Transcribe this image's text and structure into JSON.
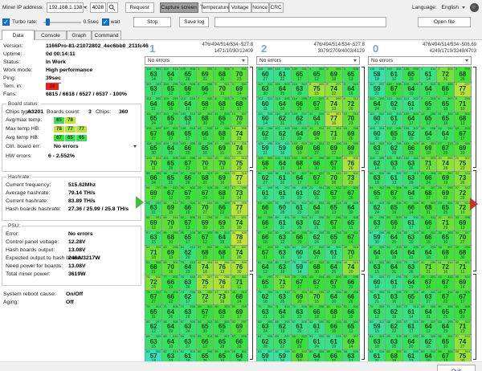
{
  "toolbar": {
    "ip_label": "Miner IP address:",
    "ip_value": "192.168.1.138",
    "separator": ":",
    "port_value": "4028",
    "request_label": "Request",
    "capture_label": "Capture screen",
    "temperature_label": "Temperature",
    "voltage_label": "Voltage",
    "nonce_label": "Nonce",
    "crc_label": "CRC",
    "language_label": "Language:",
    "language_value": "English",
    "turbo_label": "Turbo rate:",
    "interval_label": "0.5sec",
    "wait_label": "wait",
    "stop_label": "Stop",
    "savelog_label": "Save log",
    "log_value": "",
    "openfile_label": "Open file",
    "quit_label": "Quit"
  },
  "tabs": [
    {
      "label": "Data",
      "active": true
    },
    {
      "label": "Console",
      "active": false
    },
    {
      "label": "Graph",
      "active": false
    },
    {
      "label": "Command",
      "active": false
    }
  ],
  "left": {
    "info_rows": [
      {
        "label": "Version:",
        "value": "1166Pro-81-21072802_4ec6bb0_211fc46"
      },
      {
        "label": "Uptime:",
        "value": "0d 00:14:11"
      },
      {
        "label": "Status:",
        "value": "In Work"
      },
      {
        "label": "Work mode:",
        "value": "High performance"
      },
      {
        "label": "Ping:",
        "value": "39sec",
        "underline": true
      },
      {
        "label": "Tem. in:",
        "badge": "36"
      },
      {
        "label": "Fans:",
        "value": "6815 / 6618 / 6527 / 6537 - 100%"
      }
    ],
    "board_status": {
      "title": "Board status:",
      "chips_type_label": "Chips type:",
      "chips_type_value": "A3201",
      "boards_count_label": "Boards count:",
      "boards_count_value": "3",
      "chips_label": "Chips:",
      "chips_value": "360",
      "avg_max_label": "Avg/max temp:",
      "avg_max_values": [
        65,
        78
      ],
      "max_hb_label": "Max temp HB:",
      "max_hb_values": [
        78,
        77,
        77
      ],
      "avg_hb_label": "Avg temp HB:",
      "avg_hb_values": [
        67,
        65,
        65
      ],
      "ctrl_err_label": "Ctrl. board err:",
      "ctrl_err_value": "No errors",
      "hw_label": "HW errors:",
      "hw_value": "6 - 2.552%"
    },
    "hashrate": {
      "title": "Hashrate:",
      "rows": [
        {
          "label": "Current frequency:",
          "value": "515.62Mhz"
        },
        {
          "label": "Average hashrate:",
          "value": "79.14 TH/s"
        },
        {
          "label": "Current hashrate:",
          "value": "83.89 TH/s"
        },
        {
          "label": "Hash boards hashrate:",
          "value": "27.36 / 25.99 / 25.8 TH/s"
        }
      ]
    },
    "psu": {
      "title": "PSU:",
      "rows": [
        {
          "label": "Error:",
          "value": "No errors"
        },
        {
          "label": "Control panel voltage:",
          "value": "12.28V"
        },
        {
          "label": "Hash boards output:",
          "value": "13.08V"
        },
        {
          "label": "Expected output to hash boards:",
          "value": "246A/3217W"
        },
        {
          "label": "Need power for boards:",
          "value": "13.08V"
        },
        {
          "label": "Total miner power:",
          "value": "3619W"
        }
      ]
    },
    "footer_rows": [
      {
        "label": "System reboot cause:",
        "value": "On/Off"
      },
      {
        "label": "Aging:",
        "value": "Off"
      }
    ]
  },
  "boards": [
    {
      "id": "1",
      "stats_line1": "476/494/514/534~527.8",
      "stats_line2": "1471/10/30/12409",
      "error_value": "No errors",
      "temps": [
        [
          63,
          64,
          65,
          69,
          68,
          70
        ],
        [
          63,
          65,
          66,
          66,
          70,
          69
        ],
        [
          64,
          66,
          64,
          68,
          68,
          68
        ],
        [
          65,
          65,
          63,
          68,
          66,
          70
        ],
        [
          67,
          66,
          65,
          66,
          68,
          74
        ],
        [
          65,
          64,
          66,
          65,
          69,
          74
        ],
        [
          70,
          65,
          67,
          70,
          70,
          75
        ],
        [
          66,
          65,
          66,
          68,
          69,
          77
        ],
        [
          69,
          67,
          67,
          67,
          68,
          73
        ],
        [
          63,
          69,
          66,
          70,
          66,
          77
        ],
        [
          69,
          70,
          67,
          69,
          69,
          74
        ],
        [
          63,
          68,
          65,
          67,
          64,
          78
        ],
        [
          71,
          69,
          62,
          68,
          68,
          74
        ],
        [
          68,
          70,
          64,
          74,
          76,
          76
        ],
        [
          72,
          66,
          63,
          75,
          76,
          71
        ],
        [
          67,
          66,
          62,
          72,
          73,
          68
        ],
        [
          65,
          64,
          63,
          67,
          68,
          69
        ],
        [
          62,
          64,
          63,
          65,
          65,
          69
        ],
        [
          63,
          64,
          63,
          66,
          65,
          66
        ],
        [
          57,
          63,
          61,
          65,
          65,
          64
        ]
      ]
    },
    {
      "id": "2",
      "stats_line1": "476/494/514/534~527.8",
      "stats_line2": "3079/2709/4003/4129",
      "error_value": "No errors",
      "temps": [
        [
          60,
          61,
          65,
          65,
          69,
          65
        ],
        [
          63,
          64,
          63,
          75,
          74,
          64
        ],
        [
          60,
          64,
          66,
          67,
          74,
          72
        ],
        [
          60,
          62,
          62,
          64,
          77,
          70
        ],
        [
          62,
          62,
          64,
          69,
          71,
          69
        ],
        [
          59,
          59,
          69,
          66,
          69,
          69
        ],
        [
          68,
          64,
          68,
          66,
          67,
          76
        ],
        [
          62,
          61,
          64,
          67,
          70,
          73
        ],
        [
          61,
          61,
          61,
          62,
          67,
          67
        ],
        [
          66,
          60,
          61,
          64,
          65,
          64
        ],
        [
          66,
          61,
          63,
          62,
          67,
          65
        ],
        [
          66,
          63,
          66,
          62,
          65,
          67
        ],
        [
          67,
          63,
          60,
          64,
          61,
          70
        ],
        [
          64,
          63,
          59,
          68,
          64,
          74
        ],
        [
          65,
          71,
          67,
          67,
          67,
          66
        ],
        [
          62,
          63,
          69,
          70,
          64,
          66
        ],
        [
          63,
          64,
          63,
          66,
          68,
          66
        ],
        [
          63,
          62,
          61,
          61,
          66,
          65
        ],
        [
          62,
          63,
          67,
          61,
          61,
          69
        ],
        [
          59,
          59,
          69,
          64,
          66,
          63
        ]
      ]
    },
    {
      "id": "0",
      "stats_line1": "476/494/514/534~506.69",
      "stats_line2": "4249/1719/3249/4703",
      "error_value": "No errors",
      "temps": [
        [
          58,
          61,
          65,
          61,
          72,
          68
        ],
        [
          59,
          67,
          64,
          64,
          66,
          77
        ],
        [
          64,
          62,
          61,
          65,
          65,
          71
        ],
        [
          60,
          61,
          64,
          65,
          65,
          68
        ],
        [
          60,
          65,
          62,
          64,
          64,
          67
        ],
        [
          63,
          62,
          66,
          69,
          67,
          69
        ],
        [
          62,
          63,
          63,
          71,
          74,
          75
        ],
        [
          63,
          61,
          63,
          66,
          69,
          73
        ],
        [
          65,
          67,
          64,
          68,
          69,
          72
        ],
        [
          62,
          65,
          66,
          68,
          65,
          72
        ],
        [
          63,
          66,
          61,
          66,
          71,
          69
        ],
        [
          59,
          64,
          63,
          66,
          65,
          70
        ],
        [
          64,
          64,
          64,
          64,
          68,
          68
        ],
        [
          63,
          64,
          63,
          71,
          72,
          71
        ],
        [
          60,
          61,
          64,
          67,
          67,
          69
        ],
        [
          61,
          63,
          65,
          63,
          67,
          67
        ],
        [
          63,
          62,
          61,
          64,
          65,
          67
        ],
        [
          59,
          62,
          61,
          64,
          64,
          71
        ],
        [
          63,
          63,
          64,
          62,
          65,
          74
        ],
        [
          61,
          68,
          61,
          64,
          67,
          75
        ]
      ]
    }
  ],
  "cell_annotation_ranges": {
    "top_right_min": 295,
    "top_right_max": 315,
    "bottom_min": 10,
    "bottom_max": 31
  },
  "colors": {
    "board_id": "#70a8d8",
    "badge_red": "#ee1c1c",
    "arrow_left_green": "#3fbf3f",
    "arrow_right_red": "#cc3322"
  }
}
